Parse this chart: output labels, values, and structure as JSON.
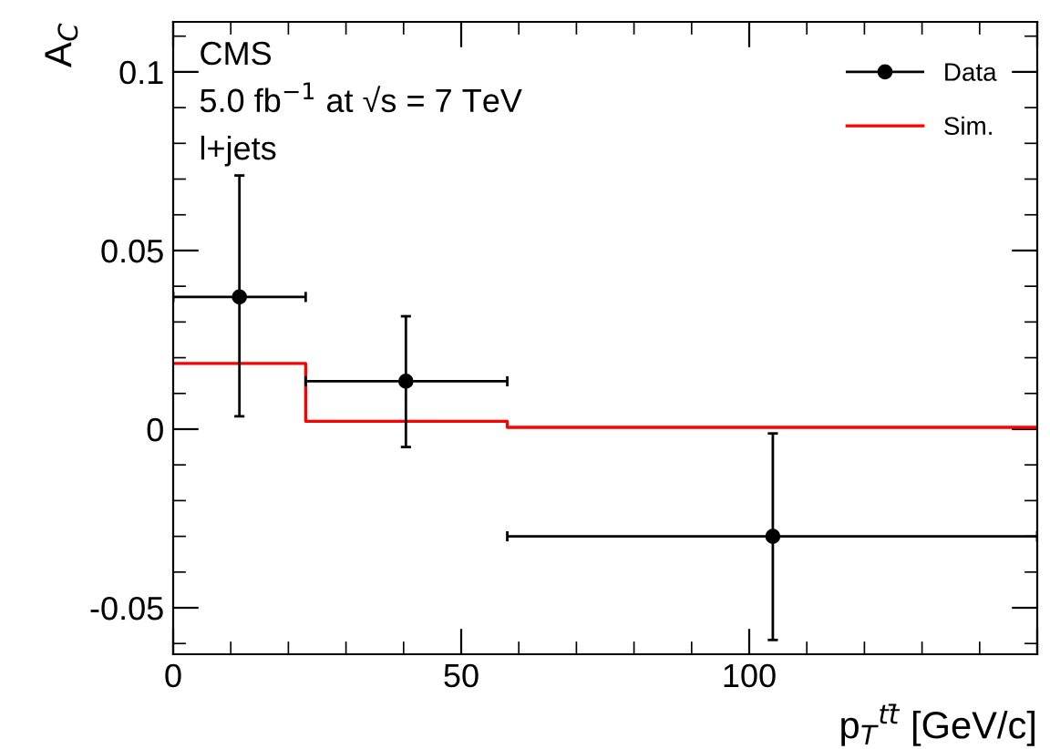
{
  "chart_data": {
    "type": "scatter",
    "xlabel": "p$_{T}$$^{tt̄}$ [GeV/c]",
    "ylabel": "A$_{C}$",
    "annotations": [
      "CMS",
      "5.0 fb$^{−1}$ at √s = 7 TeV",
      "l+jets"
    ],
    "xlim": [
      0,
      150
    ],
    "ylim": [
      -0.063,
      0.114
    ],
    "xticks": [
      0,
      50,
      100,
      {
        "value": 150,
        "label": null
      }
    ],
    "yticks": [
      -0.05,
      0,
      0.05,
      0.1
    ],
    "grid": false,
    "legend": "top right",
    "series": [
      {
        "name": "Data",
        "color": "#000000",
        "marker": "circle",
        "x": [
          11.5,
          40.4,
          104.1
        ],
        "values": [
          0.037,
          0.0134,
          -0.03
        ],
        "errors": [
          [
            0.0036,
            0.071
          ],
          [
            -0.005,
            0.0316
          ],
          [
            -0.059,
            -0.0012
          ]
        ],
        "xerrors": [
          [
            0,
            23
          ],
          [
            23,
            58
          ],
          [
            58,
            150
          ]
        ]
      },
      {
        "name": "Sim.",
        "type": "step",
        "color": "#ff0000",
        "marker": "none",
        "x": [
          0,
          23,
          58,
          150
        ],
        "values": [
          0.0184,
          0.0022,
          0.0005,
          0.0005
        ]
      }
    ]
  }
}
